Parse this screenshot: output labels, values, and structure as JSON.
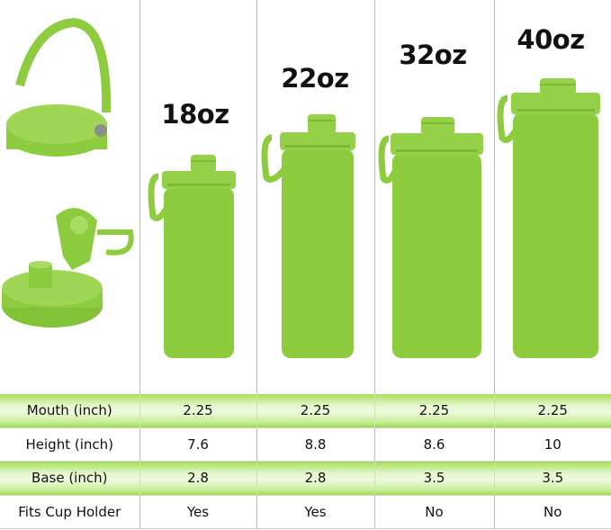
{
  "colors": {
    "bottle": "#8dcc3e",
    "row_highlight": "#a6e05a"
  },
  "sizes": [
    "18oz",
    "22oz",
    "32oz",
    "40oz"
  ],
  "table": {
    "rows": [
      {
        "label": "Mouth (inch)",
        "values": [
          "2.25",
          "2.25",
          "2.25",
          "2.25"
        ],
        "highlight": true
      },
      {
        "label": "Height (inch)",
        "values": [
          "7.6",
          "8.8",
          "8.6",
          "10"
        ],
        "highlight": false
      },
      {
        "label": "Base (inch)",
        "values": [
          "2.8",
          "2.8",
          "3.5",
          "3.5"
        ],
        "highlight": true
      },
      {
        "label": "Fits Cup Holder",
        "values": [
          "Yes",
          "Yes",
          "No",
          "No"
        ],
        "highlight": false
      }
    ]
  }
}
